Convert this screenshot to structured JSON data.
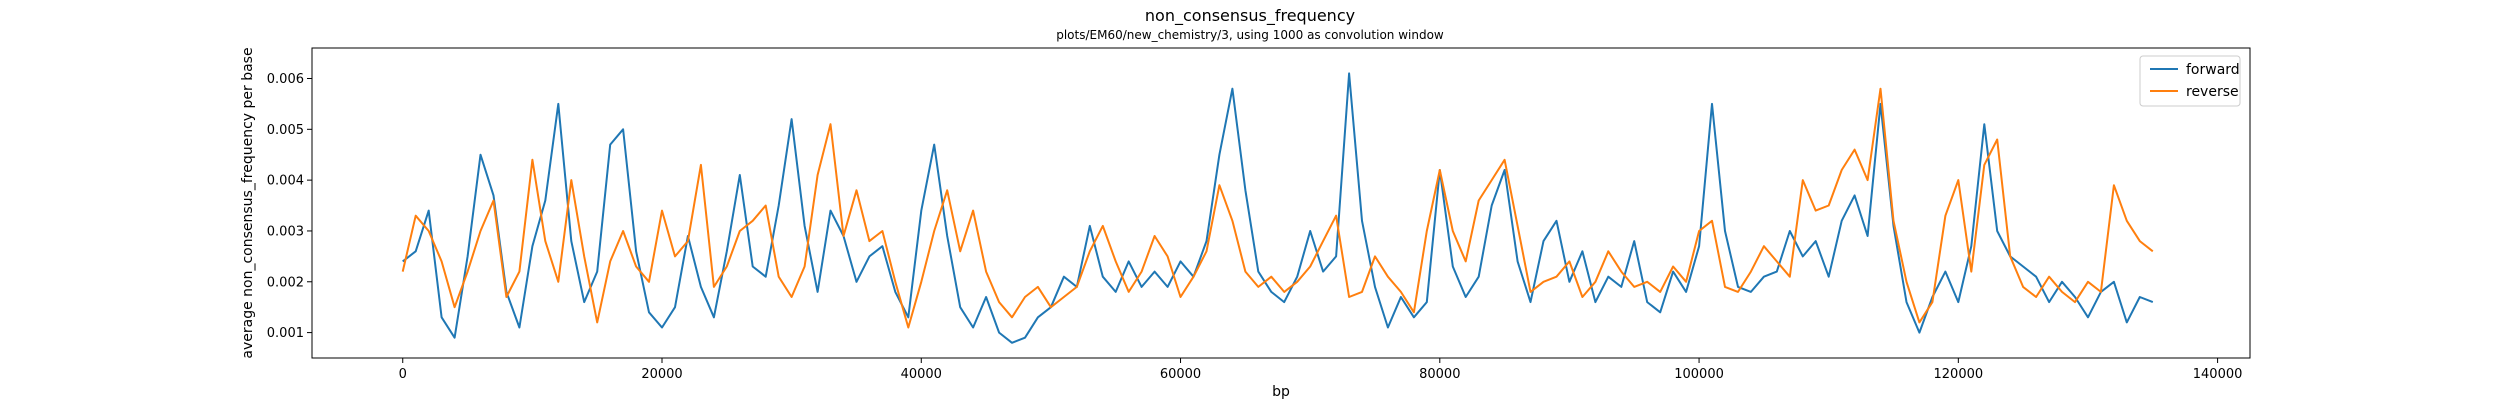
{
  "chart_data": {
    "type": "line",
    "title": "non_consensus_frequency",
    "subtitle": "plots/EM60/new_chemistry/3, using 1000 as convolution window",
    "xlabel": "bp",
    "ylabel": "average non_consensus_frequency per base",
    "xlim": [
      -7000,
      142500
    ],
    "ylim": [
      0.0005,
      0.0066
    ],
    "x_ticks": [
      0,
      20000,
      40000,
      60000,
      80000,
      100000,
      120000,
      140000
    ],
    "x_tick_labels": [
      "0",
      "20000",
      "40000",
      "60000",
      "80000",
      "100000",
      "120000",
      "140000"
    ],
    "y_ticks": [
      0.001,
      0.002,
      0.003,
      0.004,
      0.005,
      0.006
    ],
    "y_tick_labels": [
      "0.001",
      "0.002",
      "0.003",
      "0.004",
      "0.005",
      "0.006"
    ],
    "grid": false,
    "legend_position": "top-right",
    "colors": {
      "forward": "#1f77b4",
      "reverse": "#ff7f0e"
    },
    "series": [
      {
        "name": "forward",
        "x": [
          0,
          1000,
          2000,
          3000,
          4000,
          5000,
          6000,
          7000,
          8000,
          9000,
          10000,
          11000,
          12000,
          13000,
          14000,
          15000,
          16000,
          17000,
          18000,
          19000,
          20000,
          21000,
          22000,
          23000,
          24000,
          25000,
          26000,
          27000,
          28000,
          29000,
          30000,
          31000,
          32000,
          33000,
          34000,
          35000,
          36000,
          37000,
          38000,
          39000,
          40000,
          41000,
          42000,
          43000,
          44000,
          45000,
          46000,
          47000,
          48000,
          49000,
          50000,
          51000,
          52000,
          53000,
          54000,
          55000,
          56000,
          57000,
          58000,
          59000,
          60000,
          61000,
          62000,
          63000,
          64000,
          65000,
          66000,
          67000,
          68000,
          69000,
          70000,
          71000,
          72000,
          73000,
          74000,
          75000,
          76000,
          77000,
          78000,
          79000,
          80000,
          81000,
          82000,
          83000,
          84000,
          85000,
          86000,
          87000,
          88000,
          89000,
          90000,
          91000,
          92000,
          93000,
          94000,
          95000,
          96000,
          97000,
          98000,
          99000,
          100000,
          101000,
          102000,
          103000,
          104000,
          105000,
          106000,
          107000,
          108000,
          109000,
          110000,
          111000,
          112000,
          113000,
          114000,
          115000,
          116000,
          117000,
          118000,
          119000,
          120000,
          121000,
          122000,
          123000,
          124000,
          125000,
          126000,
          127000,
          128000,
          129000,
          130000,
          131000,
          132000,
          133000,
          134000,
          135000
        ],
        "values": [
          0.0024,
          0.0026,
          0.0034,
          0.0013,
          0.0009,
          0.0025,
          0.0045,
          0.0037,
          0.0018,
          0.0011,
          0.0027,
          0.0036,
          0.0055,
          0.0028,
          0.0016,
          0.0022,
          0.0047,
          0.005,
          0.0026,
          0.0014,
          0.0011,
          0.0015,
          0.0029,
          0.0019,
          0.0013,
          0.0026,
          0.0041,
          0.0023,
          0.0021,
          0.0035,
          0.0052,
          0.0031,
          0.0018,
          0.0034,
          0.0029,
          0.002,
          0.0025,
          0.0027,
          0.0018,
          0.0013,
          0.0034,
          0.0047,
          0.0029,
          0.0015,
          0.0011,
          0.0017,
          0.001,
          0.0008,
          0.0009,
          0.0013,
          0.0015,
          0.0021,
          0.0019,
          0.0031,
          0.0021,
          0.0018,
          0.0024,
          0.0019,
          0.0022,
          0.0019,
          0.0024,
          0.0021,
          0.0028,
          0.0045,
          0.0058,
          0.0038,
          0.0022,
          0.0018,
          0.0016,
          0.0021,
          0.003,
          0.0022,
          0.0025,
          0.0061,
          0.0032,
          0.0019,
          0.0011,
          0.0017,
          0.0013,
          0.0016,
          0.0042,
          0.0023,
          0.0017,
          0.0021,
          0.0035,
          0.0042,
          0.0024,
          0.0016,
          0.0028,
          0.0032,
          0.002,
          0.0026,
          0.0016,
          0.0021,
          0.0019,
          0.0028,
          0.0016,
          0.0014,
          0.0022,
          0.0018,
          0.0027,
          0.0055,
          0.003,
          0.0019,
          0.0018,
          0.0021,
          0.0022,
          0.003,
          0.0025,
          0.0028,
          0.0021,
          0.0032,
          0.0037,
          0.0029,
          0.0055,
          0.0031,
          0.0016,
          0.001,
          0.0017,
          0.0022,
          0.0016,
          0.0027,
          0.0051,
          0.003,
          0.0025,
          0.0023,
          0.0021,
          0.0016,
          0.002,
          0.0017,
          0.0013,
          0.0018,
          0.002,
          0.0012,
          0.0017,
          0.0016
        ]
      },
      {
        "name": "reverse",
        "x": [
          0,
          1000,
          2000,
          3000,
          4000,
          5000,
          6000,
          7000,
          8000,
          9000,
          10000,
          11000,
          12000,
          13000,
          14000,
          15000,
          16000,
          17000,
          18000,
          19000,
          20000,
          21000,
          22000,
          23000,
          24000,
          25000,
          26000,
          27000,
          28000,
          29000,
          30000,
          31000,
          32000,
          33000,
          34000,
          35000,
          36000,
          37000,
          38000,
          39000,
          40000,
          41000,
          42000,
          43000,
          44000,
          45000,
          46000,
          47000,
          48000,
          49000,
          50000,
          51000,
          52000,
          53000,
          54000,
          55000,
          56000,
          57000,
          58000,
          59000,
          60000,
          61000,
          62000,
          63000,
          64000,
          65000,
          66000,
          67000,
          68000,
          69000,
          70000,
          71000,
          72000,
          73000,
          74000,
          75000,
          76000,
          77000,
          78000,
          79000,
          80000,
          81000,
          82000,
          83000,
          84000,
          85000,
          86000,
          87000,
          88000,
          89000,
          90000,
          91000,
          92000,
          93000,
          94000,
          95000,
          96000,
          97000,
          98000,
          99000,
          100000,
          101000,
          102000,
          103000,
          104000,
          105000,
          106000,
          107000,
          108000,
          109000,
          110000,
          111000,
          112000,
          113000,
          114000,
          115000,
          116000,
          117000,
          118000,
          119000,
          120000,
          121000,
          122000,
          123000,
          124000,
          125000,
          126000,
          127000,
          128000,
          129000,
          130000,
          131000,
          132000,
          133000,
          134000,
          135000
        ],
        "values": [
          0.0022,
          0.0033,
          0.003,
          0.0024,
          0.0015,
          0.0022,
          0.003,
          0.0036,
          0.0017,
          0.0022,
          0.0044,
          0.0028,
          0.002,
          0.004,
          0.0025,
          0.0012,
          0.0024,
          0.003,
          0.0023,
          0.002,
          0.0034,
          0.0025,
          0.0028,
          0.0043,
          0.0019,
          0.0023,
          0.003,
          0.0032,
          0.0035,
          0.0021,
          0.0017,
          0.0023,
          0.0041,
          0.0051,
          0.0029,
          0.0038,
          0.0028,
          0.003,
          0.002,
          0.0011,
          0.002,
          0.003,
          0.0038,
          0.0026,
          0.0034,
          0.0022,
          0.0016,
          0.0013,
          0.0017,
          0.0019,
          0.0015,
          0.0017,
          0.0019,
          0.0026,
          0.0031,
          0.0024,
          0.0018,
          0.0022,
          0.0029,
          0.0025,
          0.0017,
          0.0021,
          0.0026,
          0.0039,
          0.0032,
          0.0022,
          0.0019,
          0.0021,
          0.0018,
          0.002,
          0.0023,
          0.0028,
          0.0033,
          0.0017,
          0.0018,
          0.0025,
          0.0021,
          0.0018,
          0.0014,
          0.003,
          0.0042,
          0.003,
          0.0024,
          0.0036,
          0.004,
          0.0044,
          0.0031,
          0.0018,
          0.002,
          0.0021,
          0.0024,
          0.0017,
          0.002,
          0.0026,
          0.0022,
          0.0019,
          0.002,
          0.0018,
          0.0023,
          0.002,
          0.003,
          0.0032,
          0.0019,
          0.0018,
          0.0022,
          0.0027,
          0.0024,
          0.0021,
          0.004,
          0.0034,
          0.0035,
          0.0042,
          0.0046,
          0.004,
          0.0058,
          0.0032,
          0.002,
          0.0012,
          0.0016,
          0.0033,
          0.004,
          0.0022,
          0.0043,
          0.0048,
          0.0025,
          0.0019,
          0.0017,
          0.0021,
          0.0018,
          0.0016,
          0.002,
          0.0018,
          0.0039,
          0.0032,
          0.0028,
          0.0026
        ]
      }
    ]
  }
}
